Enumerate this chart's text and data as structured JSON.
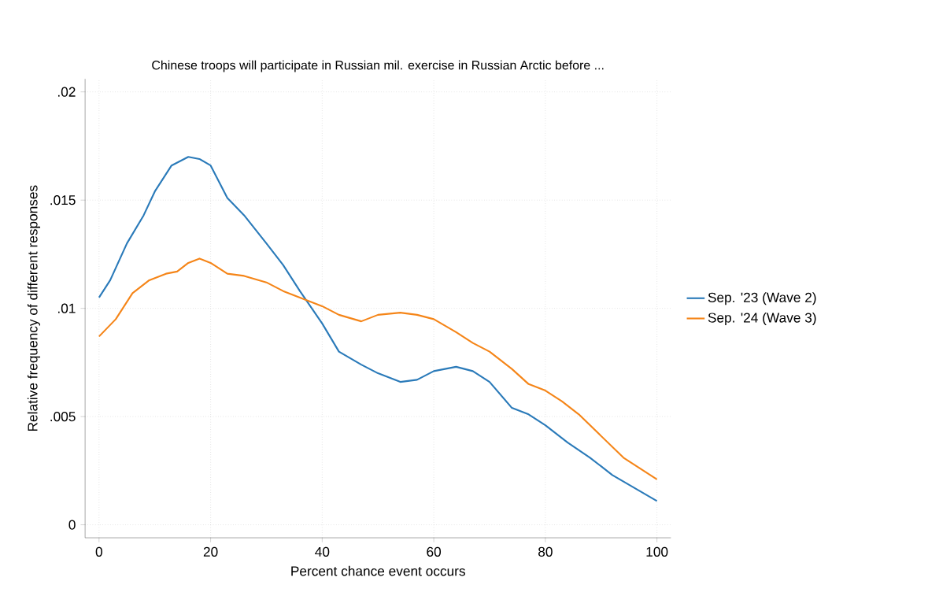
{
  "chart_data": {
    "type": "line",
    "title": "Chinese troops will participate in Russian mil. exercise in  Russian Arctic before ...",
    "xlabel": "Percent chance event occurs",
    "ylabel": "Relative frequency of different responses",
    "xlim": [
      0,
      100
    ],
    "xticks": [
      0,
      20,
      40,
      60,
      80,
      100
    ],
    "ylim": [
      0,
      0.02
    ],
    "yticks": [
      0,
      {
        "value": 0.005,
        "label": ".005"
      },
      {
        "value": 0.01,
        "label": ".01"
      },
      {
        "value": 0.015,
        "label": ".015"
      },
      {
        "value": 0.02,
        "label": ".02"
      }
    ],
    "grid": true,
    "legend": "right",
    "marker": "none",
    "line_style": "solid",
    "series": [
      {
        "name": "Sep. '23 (Wave 2)",
        "color": "#2a7ab9",
        "x": [
          0,
          2,
          5,
          8,
          10,
          13,
          16,
          18,
          20,
          23,
          26,
          30,
          33,
          36,
          40,
          43,
          47,
          50,
          54,
          57,
          60,
          64,
          67,
          70,
          74,
          77,
          80,
          84,
          88,
          92,
          96,
          100
        ],
        "values": [
          0.0105,
          0.0113,
          0.013,
          0.0143,
          0.0154,
          0.0166,
          0.017,
          0.0169,
          0.0166,
          0.0151,
          0.0143,
          0.013,
          0.012,
          0.0108,
          0.0093,
          0.008,
          0.0074,
          0.007,
          0.0066,
          0.0067,
          0.0071,
          0.0073,
          0.0071,
          0.0066,
          0.0054,
          0.0051,
          0.0046,
          0.0038,
          0.0031,
          0.0023,
          0.0017,
          0.0011
        ]
      },
      {
        "name": "Sep. '24 (Wave 3)",
        "color": "#f58518",
        "x": [
          0,
          3,
          6,
          9,
          12,
          14,
          16,
          18,
          20,
          23,
          26,
          30,
          33,
          37,
          40,
          43,
          47,
          50,
          54,
          57,
          60,
          64,
          67,
          70,
          74,
          77,
          80,
          83,
          86,
          90,
          94,
          97,
          100
        ],
        "values": [
          0.0087,
          0.0095,
          0.0107,
          0.0113,
          0.0116,
          0.0117,
          0.0121,
          0.0123,
          0.0121,
          0.0116,
          0.0115,
          0.0112,
          0.0108,
          0.0104,
          0.0101,
          0.0097,
          0.0094,
          0.0097,
          0.0098,
          0.0097,
          0.0095,
          0.0089,
          0.0084,
          0.008,
          0.0072,
          0.0065,
          0.0062,
          0.0057,
          0.0051,
          0.0041,
          0.0031,
          0.0026,
          0.0021
        ]
      }
    ]
  }
}
